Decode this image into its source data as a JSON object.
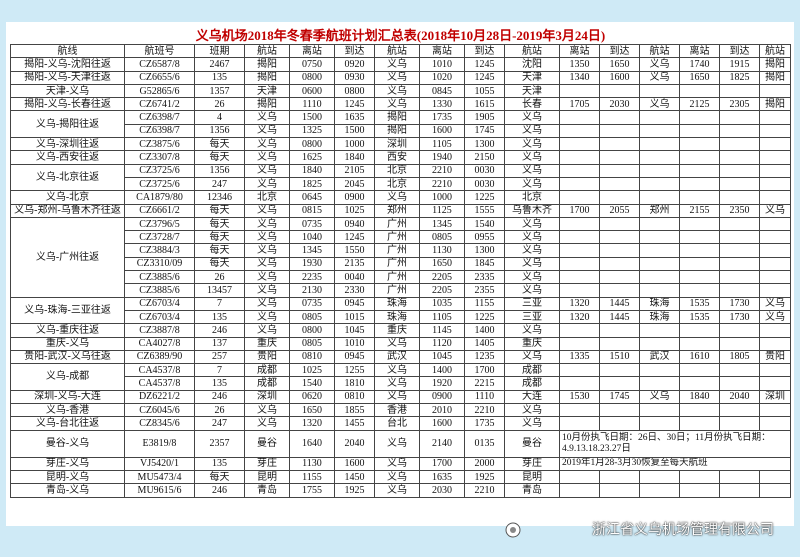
{
  "title": "义乌机场2018年冬春季航班计划汇总表(2018年10月28日-2019年3月24日)",
  "header": [
    "航线",
    "航班号",
    "班期",
    "航站",
    "离站",
    "到达",
    "航站",
    "离站",
    "到达",
    "航站",
    "离站",
    "到达",
    "航站",
    "离站",
    "到达",
    "航站"
  ],
  "groups": [
    {
      "route": "揭阳-义乌-沈阳往返",
      "flights": [
        [
          "CZ6587/8",
          "2467",
          "揭阳",
          "0750",
          "0920",
          "义乌",
          "1010",
          "1245",
          "沈阳",
          "1350",
          "1650",
          "义乌",
          "1740",
          "1915",
          "揭阳"
        ]
      ]
    },
    {
      "route": "揭阳-义乌-天津往返",
      "flights": [
        [
          "CZ6655/6",
          "135",
          "揭阳",
          "0800",
          "0930",
          "义乌",
          "1020",
          "1245",
          "天津",
          "1340",
          "1600",
          "义乌",
          "1650",
          "1825",
          "揭阳"
        ]
      ]
    },
    {
      "route": "天津-义乌",
      "flights": [
        [
          "G52865/6",
          "1357",
          "天津",
          "0600",
          "0800",
          "义乌",
          "0845",
          "1055",
          "天津"
        ]
      ]
    },
    {
      "route": "揭阳-义乌-长春往返",
      "flights": [
        [
          "CZ6741/2",
          "26",
          "揭阳",
          "1110",
          "1245",
          "义乌",
          "1330",
          "1615",
          "长春",
          "1705",
          "2030",
          "义乌",
          "2125",
          "2305",
          "揭阳"
        ]
      ]
    },
    {
      "route": "义乌-揭阳往返",
      "flights": [
        [
          "CZ6398/7",
          "4",
          "义乌",
          "1500",
          "1635",
          "揭阳",
          "1735",
          "1905",
          "义乌"
        ],
        [
          "CZ6398/7",
          "1356",
          "义乌",
          "1325",
          "1500",
          "揭阳",
          "1600",
          "1745",
          "义乌"
        ]
      ]
    },
    {
      "route": "义乌-深圳往返",
      "flights": [
        [
          "CZ3875/6",
          "每天",
          "义乌",
          "0800",
          "1000",
          "深圳",
          "1105",
          "1300",
          "义乌"
        ]
      ]
    },
    {
      "route": "义乌-西安往返",
      "flights": [
        [
          "CZ3307/8",
          "每天",
          "义乌",
          "1625",
          "1840",
          "西安",
          "1940",
          "2150",
          "义乌"
        ]
      ]
    },
    {
      "route": "义乌-北京往返",
      "flights": [
        [
          "CZ3725/6",
          "1356",
          "义乌",
          "1840",
          "2105",
          "北京",
          "2210",
          "0030",
          "义乌"
        ],
        [
          "CZ3725/6",
          "247",
          "义乌",
          "1825",
          "2045",
          "北京",
          "2210",
          "0030",
          "义乌"
        ]
      ]
    },
    {
      "route": "义乌-北京",
      "flights": [
        [
          "CA1879/80",
          "12346",
          "北京",
          "0645",
          "0900",
          "义乌",
          "1000",
          "1225",
          "北京"
        ]
      ]
    },
    {
      "route": "义乌-郑州-乌鲁木齐往返",
      "flights": [
        [
          "CZ6661/2",
          "每天",
          "义乌",
          "0815",
          "1025",
          "郑州",
          "1125",
          "1555",
          "乌鲁木齐",
          "1700",
          "2055",
          "郑州",
          "2155",
          "2350",
          "义乌"
        ]
      ]
    },
    {
      "route": "义乌-广州往返",
      "flights": [
        [
          "CZ3796/5",
          "每天",
          "义乌",
          "0735",
          "0940",
          "广州",
          "1345",
          "1540",
          "义乌"
        ],
        [
          "CZ3728/7",
          "每天",
          "义乌",
          "1040",
          "1245",
          "广州",
          "0805",
          "0955",
          "义乌"
        ],
        [
          "CZ3884/3",
          "每天",
          "义乌",
          "1345",
          "1550",
          "广州",
          "1130",
          "1300",
          "义乌"
        ],
        [
          "CZ3310/09",
          "每天",
          "义乌",
          "1930",
          "2135",
          "广州",
          "1650",
          "1845",
          "义乌"
        ],
        [
          "CZ3885/6",
          "26",
          "义乌",
          "2235",
          "0040",
          "广州",
          "2205",
          "2335",
          "义乌"
        ],
        [
          "CZ3885/6",
          "13457",
          "义乌",
          "2130",
          "2330",
          "广州",
          "2205",
          "2355",
          "义乌"
        ]
      ]
    },
    {
      "route": "义乌-珠海-三亚往返",
      "flights": [
        [
          "CZ6703/4",
          "7",
          "义乌",
          "0735",
          "0945",
          "珠海",
          "1035",
          "1155",
          "三亚",
          "1320",
          "1445",
          "珠海",
          "1535",
          "1730",
          "义乌"
        ],
        [
          "CZ6703/4",
          "135",
          "义乌",
          "0805",
          "1015",
          "珠海",
          "1105",
          "1225",
          "三亚",
          "1320",
          "1445",
          "珠海",
          "1535",
          "1730",
          "义乌"
        ]
      ]
    },
    {
      "route": "义乌-重庆往返",
      "flights": [
        [
          "CZ3887/8",
          "246",
          "义乌",
          "0800",
          "1045",
          "重庆",
          "1145",
          "1400",
          "义乌"
        ]
      ]
    },
    {
      "route": "重庆-义乌",
      "flights": [
        [
          "CA4027/8",
          "137",
          "重庆",
          "0805",
          "1010",
          "义乌",
          "1120",
          "1405",
          "重庆"
        ]
      ]
    },
    {
      "route": "贵阳-武汉-义乌往返",
      "flights": [
        [
          "CZ6389/90",
          "257",
          "贵阳",
          "0810",
          "0945",
          "武汉",
          "1045",
          "1235",
          "义乌",
          "1335",
          "1510",
          "武汉",
          "1610",
          "1805",
          "贵阳"
        ]
      ]
    },
    {
      "route": "义乌-成都",
      "flights": [
        [
          "CA4537/8",
          "7",
          "成都",
          "1025",
          "1255",
          "义乌",
          "1400",
          "1700",
          "成都"
        ],
        [
          "CA4537/8",
          "135",
          "成都",
          "1540",
          "1810",
          "义乌",
          "1920",
          "2215",
          "成都"
        ]
      ]
    },
    {
      "route": "深圳-义乌-大连",
      "flights": [
        [
          "DZ6221/2",
          "246",
          "深圳",
          "0620",
          "0810",
          "义乌",
          "0900",
          "1110",
          "大连",
          "1530",
          "1745",
          "义乌",
          "1840",
          "2040",
          "深圳"
        ]
      ]
    },
    {
      "route": "义乌-香港",
      "flights": [
        [
          "CZ6045/6",
          "26",
          "义乌",
          "1650",
          "1855",
          "香港",
          "2010",
          "2210",
          "义乌"
        ]
      ]
    },
    {
      "route": "义乌-台北往返",
      "flights": [
        [
          "CZ8345/6",
          "247",
          "义乌",
          "1320",
          "1455",
          "台北",
          "1600",
          "1735",
          "义乌"
        ]
      ]
    },
    {
      "route": "曼谷-义乌",
      "flights": [
        [
          "E3819/8",
          "2357",
          "曼谷",
          "1640",
          "2040",
          "义乌",
          "2140",
          "0135",
          "曼谷"
        ]
      ],
      "note": "10月份执飞日期：26日、30日；11月份执飞日期：4.9.13.18.23.27日"
    },
    {
      "route": "芽庄-义乌",
      "flights": [
        [
          "VJ5420/1",
          "135",
          "芽庄",
          "1130",
          "1600",
          "义乌",
          "1700",
          "2000",
          "芽庄"
        ]
      ],
      "note": "2019年1月28-3月30恢复至每天航班"
    },
    {
      "route": "昆明-义乌",
      "flights": [
        [
          "MU5473/4",
          "每天",
          "昆明",
          "1155",
          "1450",
          "义乌",
          "1635",
          "1925",
          "昆明"
        ]
      ]
    },
    {
      "route": "青岛-义乌",
      "flights": [
        [
          "MU9615/6",
          "246",
          "青岛",
          "1755",
          "1925",
          "义乌",
          "2030",
          "2210",
          "青岛"
        ]
      ]
    }
  ],
  "watermark": "浙江省义乌机场管理有限公司"
}
